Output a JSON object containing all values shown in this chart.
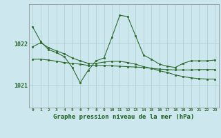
{
  "bg_color": "#cce8ee",
  "grid_color": "#aacccc",
  "line_color": "#2d6a2d",
  "marker_color": "#2d6a2d",
  "xlabel": "Graphe pression niveau de la mer (hPa)",
  "xlabel_fontsize": 6.5,
  "xlabel_color": "#1a5c1a",
  "ytick_labels": [
    "1021",
    "1022"
  ],
  "yticks": [
    1021.0,
    1022.0
  ],
  "ylim": [
    1020.45,
    1022.95
  ],
  "xlim": [
    -0.5,
    23.5
  ],
  "xticks": [
    0,
    1,
    2,
    3,
    4,
    5,
    6,
    7,
    8,
    9,
    10,
    11,
    12,
    13,
    14,
    15,
    16,
    17,
    18,
    19,
    20,
    21,
    22,
    23
  ],
  "xtick_labels": [
    "0",
    "1",
    "2",
    "3",
    "4",
    "5",
    "6",
    "7",
    "8",
    "9",
    "10",
    "11",
    "12",
    "13",
    "14",
    "15",
    "16",
    "17",
    "18",
    "19",
    "20",
    "21",
    "22",
    "23"
  ],
  "series1": [
    1022.4,
    1022.05,
    1021.85,
    1021.78,
    1021.68,
    1021.42,
    1021.05,
    1021.35,
    1021.58,
    1021.65,
    1022.15,
    1022.68,
    1022.65,
    1022.18,
    1021.72,
    1021.62,
    1021.5,
    1021.45,
    1021.42,
    1021.52,
    1021.58,
    1021.58,
    1021.58,
    1021.6
  ],
  "series2": [
    1021.92,
    1022.02,
    1021.9,
    1021.82,
    1021.75,
    1021.65,
    1021.58,
    1021.52,
    1021.52,
    1021.55,
    1021.57,
    1021.57,
    1021.54,
    1021.5,
    1021.44,
    1021.4,
    1021.34,
    1021.3,
    1021.24,
    1021.2,
    1021.17,
    1021.15,
    1021.14,
    1021.14
  ],
  "series3": [
    1021.62,
    1021.62,
    1021.6,
    1021.57,
    1021.54,
    1021.52,
    1021.5,
    1021.47,
    1021.47,
    1021.47,
    1021.46,
    1021.45,
    1021.44,
    1021.43,
    1021.42,
    1021.4,
    1021.38,
    1021.37,
    1021.36,
    1021.36,
    1021.36,
    1021.37,
    1021.37,
    1021.37
  ]
}
